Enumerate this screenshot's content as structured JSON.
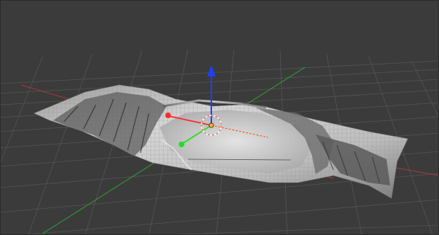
{
  "viewport": {
    "background": "#3b3b3b",
    "grid_color": "#545454",
    "x_axis_color": "#b33a3a",
    "y_axis_color": "#3aa33a",
    "gizmo_z_color": "#1f3fff",
    "gizmo_x_color": "#ff2a2a",
    "gizmo_y_color": "#22dd22",
    "origin_color": "#ffaa33",
    "mesh_color": "#c9c9c9",
    "icons": {
      "grid": "floor-grid",
      "mesh": "terrain-mesh",
      "gizmo": "transform-gizmo",
      "origin": "object-origin",
      "cursor": "3d-cursor"
    }
  }
}
